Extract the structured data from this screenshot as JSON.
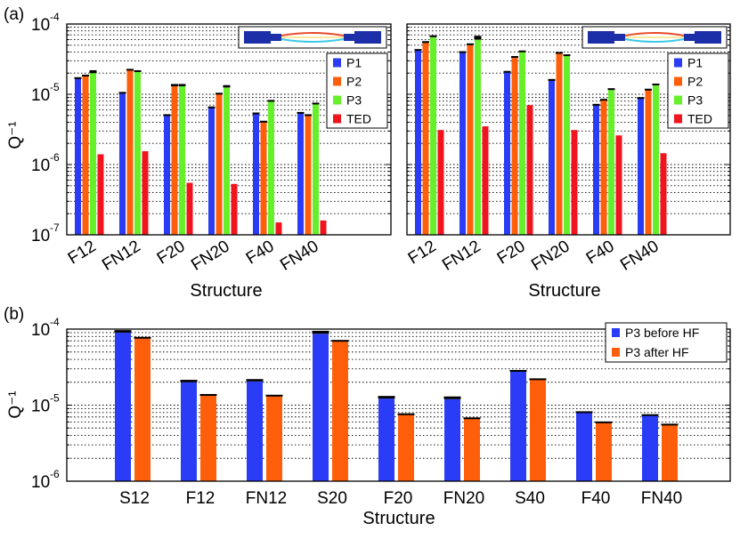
{
  "panel_labels": {
    "a": "(a)",
    "b": "(b)"
  },
  "colors": {
    "P1": "#2a3cf5",
    "P2": "#ff5f0a",
    "P3": "#66f02a",
    "TED": "#f0141e",
    "P3_before_HF": "#2a3cf5",
    "P3_after_HF": "#ff5f0a",
    "inset_beam": "#1c2fa8"
  },
  "chart_data": [
    {
      "id": "a-left",
      "type": "bar",
      "scale": "log",
      "ylim": [
        1e-07,
        0.0001
      ],
      "grid": true,
      "legend_position": "top-right",
      "xlabel": "Structure",
      "ylabel": "Q⁻¹",
      "y_tick_base": "10",
      "y_tick_exponents": [
        "-7",
        "-6",
        "-5",
        "-4"
      ],
      "categories": [
        "F12",
        "FN12",
        "F20",
        "FN20",
        "F40",
        "FN40"
      ],
      "series": [
        {
          "name": "P1",
          "values": [
            1.7e-05,
            1.05e-05,
            5e-06,
            6.5e-06,
            5.3e-06,
            5.4e-06
          ],
          "errors": [
            5e-07,
            3e-07,
            2e-07,
            2e-07,
            2e-07,
            2e-07
          ]
        },
        {
          "name": "P2",
          "values": [
            1.8e-05,
            2.2e-05,
            1.3e-05,
            1e-05,
            4e-06,
            5e-06
          ],
          "errors": [
            1e-06,
            1e-06,
            1e-06,
            5e-07,
            2e-07,
            2e-07
          ]
        },
        {
          "name": "P3",
          "values": [
            2e-05,
            2.1e-05,
            1.3e-05,
            1.25e-05,
            8e-06,
            7.3e-06
          ],
          "errors": [
            2e-06,
            1e-06,
            1e-06,
            1e-06,
            3e-07,
            3e-07
          ]
        },
        {
          "name": "TED",
          "values": [
            1.4e-06,
            1.55e-06,
            5.5e-07,
            5.3e-07,
            1.5e-07,
            1.6e-07
          ],
          "errors": [
            0,
            0,
            0,
            0,
            0,
            0
          ]
        }
      ]
    },
    {
      "id": "a-right",
      "type": "bar",
      "scale": "log",
      "ylim": [
        1e-07,
        0.0001
      ],
      "grid": true,
      "legend_position": "top-right",
      "xlabel": "Structure",
      "ylabel": "",
      "categories": [
        "F12",
        "FN12",
        "F20",
        "FN20",
        "F40",
        "FN40"
      ],
      "series": [
        {
          "name": "P1",
          "values": [
            4.3e-05,
            4e-05,
            2.1e-05,
            1.55e-05,
            7e-06,
            8.8e-06
          ],
          "errors": [
            1e-06,
            1e-06,
            5e-07,
            1e-06,
            3e-07,
            3e-07
          ]
        },
        {
          "name": "P2",
          "values": [
            5.5e-05,
            5e-05,
            3.3e-05,
            3.8e-05,
            8.3e-06,
            1.15e-05
          ],
          "errors": [
            2e-06,
            3e-06,
            2e-06,
            2e-06,
            3e-07,
            5e-07
          ]
        },
        {
          "name": "P3",
          "values": [
            6.5e-05,
            6e-05,
            4e-05,
            3.5e-05,
            1.15e-05,
            1.35e-05
          ],
          "errors": [
            4e-06,
            8e-06,
            2e-06,
            2e-06,
            7e-07,
            7e-07
          ]
        },
        {
          "name": "TED",
          "values": [
            3.1e-06,
            3.5e-06,
            7e-06,
            3.1e-06,
            2.6e-06,
            1.45e-06
          ],
          "errors": [
            0,
            0,
            0,
            0,
            0,
            0
          ]
        }
      ]
    },
    {
      "id": "b",
      "type": "bar",
      "scale": "log",
      "ylim": [
        1e-06,
        0.0001
      ],
      "grid": true,
      "legend_position": "top-right",
      "xlabel": "Structure",
      "ylabel": "Q⁻¹",
      "y_tick_base": "10",
      "y_tick_exponents": [
        "-6",
        "-5",
        "-4"
      ],
      "categories": [
        "S12",
        "F12",
        "FN12",
        "S20",
        "F20",
        "FN20",
        "S40",
        "F40",
        "FN40"
      ],
      "series": [
        {
          "name": "P3 before HF",
          "values": [
            9e-05,
            2e-05,
            2.05e-05,
            8.7e-05,
            1.22e-05,
            1.2e-05,
            2.8e-05,
            8e-06,
            7.3e-06
          ],
          "errors": [
            7e-06,
            1.5e-06,
            1.5e-06,
            8e-06,
            1e-06,
            1e-06,
            1e-06,
            3e-07,
            3e-07
          ]
        },
        {
          "name": "P3 after HF",
          "values": [
            7.6e-05,
            1.35e-05,
            1.32e-05,
            6.9e-05,
            7.5e-06,
            6.7e-06,
            2.15e-05,
            5.9e-06,
            5.5e-06
          ],
          "errors": [
            3e-06,
            5e-07,
            5e-07,
            3e-06,
            3e-07,
            2e-07,
            1e-06,
            2e-07,
            2e-07
          ]
        }
      ]
    }
  ]
}
